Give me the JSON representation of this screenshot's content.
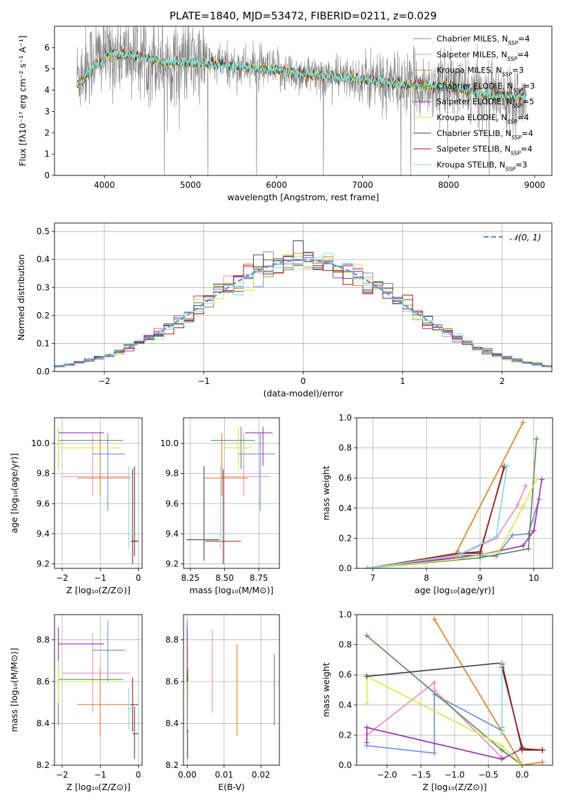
{
  "colors": {
    "chab_miles": "#6b8fd6",
    "salp_miles": "#e98fc1",
    "krou_miles": "#e0802a",
    "chab_elodie": "#5b8a5b",
    "salp_elodie": "#9b30b0",
    "krou_elodie": "#d6e84a",
    "chab_stelib": "#444444",
    "salp_stelib": "#9e1a1a",
    "krou_stelib": "#7fdcdc",
    "spectrum": "#808080",
    "normal": "#5b8fd6"
  },
  "chart_data": [
    {
      "type": "line",
      "title": "PLATE=1840, MJD=53472, FIBERID=0211, z=0.029",
      "xlabel": "wavelength [Angstrom, rest frame]",
      "ylabel": "Flux [fλ10⁻¹⁷ erg cm⁻² s⁻¹ A⁻¹]",
      "xlim": [
        3420,
        9200
      ],
      "ylim": [
        0,
        7
      ],
      "xticks": [
        "4000",
        "5000",
        "6000",
        "7000",
        "8000",
        "9000"
      ],
      "yticks": [
        "0",
        "1",
        "2",
        "3",
        "4",
        "5",
        "6"
      ],
      "legend": "top-right",
      "legend_entries": [
        {
          "label": "Chabrier MILES, N",
          "sub": "SSP",
          "suffix": "=4",
          "color": "chab_miles"
        },
        {
          "label": "Salpeter MILES, N",
          "sub": "SSP",
          "suffix": "=4",
          "color": "salp_miles"
        },
        {
          "label": "Kroupa MILES, N",
          "sub": "SSP",
          "suffix": "=3",
          "color": "krou_miles"
        },
        {
          "label": "Chabrier ELODIE, N",
          "sub": "SSP",
          "suffix": "=3",
          "color": "chab_elodie"
        },
        {
          "label": "Salpeter ELODIE, N",
          "sub": "SSP",
          "suffix": "=5",
          "color": "salp_elodie"
        },
        {
          "label": "Kroupa ELODIE, N",
          "sub": "SSP",
          "suffix": "=4",
          "color": "krou_elodie"
        },
        {
          "label": "Chabrier STELIB, N",
          "sub": "SSP",
          "suffix": "=4",
          "color": "chab_stelib"
        },
        {
          "label": "Salpeter STELIB, N",
          "sub": "SSP",
          "suffix": "=4",
          "color": "salp_stelib"
        },
        {
          "label": "Kroupa STELIB, N",
          "sub": "SSP",
          "suffix": "=3",
          "color": "krou_stelib"
        }
      ],
      "continuum": {
        "x": [
          3700,
          3900,
          4100,
          4400,
          4700,
          5000,
          5300,
          5600,
          6000,
          6400,
          6800,
          7200,
          7600,
          8000,
          8400,
          8800
        ],
        "y": [
          4.7,
          5.6,
          5.7,
          5.6,
          5.3,
          5.3,
          5.2,
          5.1,
          4.9,
          4.7,
          4.6,
          4.4,
          4.2,
          4.2,
          3.8,
          3.7
        ]
      }
    },
    {
      "type": "histogram",
      "xlabel": "(data-model)/error",
      "ylabel": "Normed distribution",
      "xlim": [
        -2.5,
        2.5
      ],
      "ylim": [
        0,
        0.53
      ],
      "xticks": [
        "−2",
        "−1",
        "0",
        "1",
        "2"
      ],
      "yticks": [
        "0.0",
        "0.1",
        "0.2",
        "0.3",
        "0.4",
        "0.5"
      ],
      "legend": "top-right",
      "legend_label": "𝒩(0, 1)",
      "bin_width": 0.1
    },
    {
      "type": "scatter",
      "xlabel": "Z [log₁₀(Z/Z⊙)]",
      "ylabel": "age  [log₁₀(age/yr)]",
      "xlim": [
        -2.2,
        0.1
      ],
      "ylim": [
        9.17,
        10.17
      ],
      "xticks": [
        "−2",
        "−1",
        "0"
      ],
      "yticks": [
        "9.2",
        "9.4",
        "9.6",
        "9.8",
        "10.0"
      ],
      "points": [
        {
          "x": -0.8,
          "xl": -1.2,
          "xr": -0.35,
          "y": 9.93,
          "yl": 9.55,
          "yh": 10.07,
          "c": "chab_miles"
        },
        {
          "x": -1.2,
          "xl": -2.0,
          "xr": -0.2,
          "y": 9.78,
          "yl": 9.65,
          "yh": 10.07,
          "c": "salp_miles"
        },
        {
          "x": -1.0,
          "xl": -1.6,
          "xr": -0.2,
          "y": 9.77,
          "yl": 9.65,
          "yh": 10.07,
          "c": "krou_miles"
        },
        {
          "x": -2.1,
          "xl": -2.1,
          "xr": -0.4,
          "y": 10.02,
          "yl": 9.83,
          "yh": 10.09,
          "c": "chab_elodie"
        },
        {
          "x": -2.1,
          "xl": -2.1,
          "xr": -0.9,
          "y": 10.07,
          "yl": 9.85,
          "yh": 10.11,
          "c": "salp_elodie"
        },
        {
          "x": -2.1,
          "xl": -2.1,
          "xr": -0.5,
          "y": 9.97,
          "yl": 9.82,
          "yh": 10.11,
          "c": "krou_elodie"
        },
        {
          "x": -0.1,
          "xl": -0.15,
          "xr": 0.0,
          "y": 9.35,
          "yl": 9.25,
          "yh": 9.85,
          "c": "chab_stelib"
        },
        {
          "x": -0.15,
          "xl": -0.2,
          "xr": 0.0,
          "y": 9.35,
          "yl": 9.2,
          "yh": 9.83,
          "c": "salp_stelib"
        },
        {
          "x": -0.25,
          "xl": -0.3,
          "xr": -0.1,
          "y": 9.4,
          "yl": 9.3,
          "yh": 9.85,
          "c": "krou_stelib"
        }
      ]
    },
    {
      "type": "scatter",
      "xlabel": "mass [log₁₀(M/M⊙)]",
      "xlim": [
        8.2,
        8.9
      ],
      "ylim": [
        9.17,
        10.17
      ],
      "xticks": [
        "8.25",
        "8.50",
        "8.75"
      ],
      "yticks": [
        "9.2",
        "9.4",
        "9.6",
        "9.8",
        "10.0"
      ],
      "points": [
        {
          "x": 8.76,
          "xl": 8.6,
          "xr": 8.87,
          "y": 9.93,
          "yl": 9.55,
          "yh": 10.07,
          "c": "chab_miles"
        },
        {
          "x": 8.64,
          "xl": 8.48,
          "xr": 8.83,
          "y": 9.78,
          "yl": 9.65,
          "yh": 10.07,
          "c": "salp_miles"
        },
        {
          "x": 8.48,
          "xl": 8.35,
          "xr": 8.67,
          "y": 9.77,
          "yl": 9.65,
          "yh": 10.07,
          "c": "krou_miles"
        },
        {
          "x": 8.62,
          "xl": 8.4,
          "xr": 8.72,
          "y": 10.02,
          "yl": 9.83,
          "yh": 10.11,
          "c": "chab_elodie"
        },
        {
          "x": 8.78,
          "xl": 8.65,
          "xr": 8.85,
          "y": 10.07,
          "yl": 9.85,
          "yh": 10.11,
          "c": "salp_elodie"
        },
        {
          "x": 8.6,
          "xl": 8.5,
          "xr": 8.7,
          "y": 9.97,
          "yl": 9.82,
          "yh": 10.11,
          "c": "krou_elodie"
        },
        {
          "x": 8.35,
          "xl": 8.22,
          "xr": 8.46,
          "y": 9.36,
          "yl": 9.22,
          "yh": 9.85,
          "c": "chab_stelib"
        },
        {
          "x": 8.49,
          "xl": 8.36,
          "xr": 8.62,
          "y": 9.35,
          "yl": 9.2,
          "yh": 9.83,
          "c": "salp_stelib"
        },
        {
          "x": 8.47,
          "xl": 8.37,
          "xr": 8.57,
          "y": 9.4,
          "yl": 9.3,
          "yh": 9.85,
          "c": "krou_stelib"
        }
      ]
    },
    {
      "type": "line",
      "xlabel": "age  [log₁₀(age/yr)]",
      "ylabel": "mass weight",
      "xlim": [
        6.7,
        10.35
      ],
      "ylim": [
        0,
        1.0
      ],
      "xticks": [
        "7",
        "8",
        "9",
        "10"
      ],
      "yticks": [
        "0.0",
        "0.2",
        "0.4",
        "0.6",
        "0.8",
        "1.0"
      ],
      "series": [
        {
          "c": "chab_miles",
          "x": [
            6.9,
            8.55,
            9.3,
            9.6,
            9.9,
            10.1
          ],
          "y": [
            0.0,
            0.09,
            0.08,
            0.22,
            0.23,
            0.46
          ]
        },
        {
          "c": "salp_miles",
          "x": [
            6.9,
            8.55,
            9.3,
            9.7,
            9.85
          ],
          "y": [
            0.0,
            0.08,
            0.2,
            0.42,
            0.55
          ]
        },
        {
          "c": "krou_miles",
          "x": [
            6.9,
            8.55,
            9.8
          ],
          "y": [
            0.0,
            0.1,
            0.97
          ]
        },
        {
          "c": "chab_elodie",
          "x": [
            6.9,
            9.0,
            9.9,
            10.05
          ],
          "y": [
            0.0,
            0.07,
            0.13,
            0.86
          ]
        },
        {
          "c": "salp_elodie",
          "x": [
            6.9,
            9.0,
            9.8,
            10.0,
            10.15
          ],
          "y": [
            0.0,
            0.09,
            0.15,
            0.25,
            0.59
          ]
        },
        {
          "c": "krou_elodie",
          "x": [
            6.9,
            8.55,
            9.35,
            9.8,
            10.05
          ],
          "y": [
            0.0,
            0.06,
            0.11,
            0.41,
            0.59
          ]
        },
        {
          "c": "chab_stelib",
          "x": [
            6.9,
            8.6,
            9.0,
            9.45
          ],
          "y": [
            0.0,
            0.1,
            0.1,
            0.68
          ]
        },
        {
          "c": "salp_stelib",
          "x": [
            6.9,
            8.6,
            9.0,
            9.45
          ],
          "y": [
            0.0,
            0.1,
            0.11,
            0.67
          ]
        },
        {
          "c": "krou_stelib",
          "x": [
            6.9,
            8.6,
            9.3,
            9.5
          ],
          "y": [
            0.0,
            0.09,
            0.21,
            0.68
          ]
        }
      ]
    },
    {
      "type": "scatter",
      "xlabel": "Z [log₁₀(Z/Z⊙)]",
      "ylabel": "mass [log₁₀(M/M⊙)]",
      "xlim": [
        -2.2,
        0.1
      ],
      "ylim": [
        8.2,
        8.92
      ],
      "xticks": [
        "−2",
        "−1",
        "0"
      ],
      "yticks": [
        "8.2",
        "8.4",
        "8.6",
        "8.8"
      ],
      "points": [
        {
          "x": -0.8,
          "xl": -1.2,
          "xr": -0.35,
          "y": 8.75,
          "yl": 8.6,
          "yh": 8.89,
          "c": "chab_miles"
        },
        {
          "x": -1.2,
          "xl": -2.0,
          "xr": -0.2,
          "y": 8.64,
          "yl": 8.45,
          "yh": 8.83,
          "c": "salp_miles"
        },
        {
          "x": -1.0,
          "xl": -1.6,
          "xr": -0.2,
          "y": 8.49,
          "yl": 8.34,
          "yh": 8.67,
          "c": "krou_miles"
        },
        {
          "x": -2.1,
          "xl": -2.1,
          "xr": -0.4,
          "y": 8.61,
          "yl": 8.39,
          "yh": 8.78,
          "c": "chab_elodie"
        },
        {
          "x": -2.1,
          "xl": -2.1,
          "xr": -0.9,
          "y": 8.78,
          "yl": 8.6,
          "yh": 8.86,
          "c": "salp_elodie"
        },
        {
          "x": -2.1,
          "xl": -2.1,
          "xr": -0.5,
          "y": 8.6,
          "yl": 8.5,
          "yh": 8.7,
          "c": "krou_elodie"
        },
        {
          "x": -0.1,
          "xl": -0.15,
          "xr": 0.0,
          "y": 8.35,
          "yl": 8.23,
          "yh": 8.48,
          "c": "chab_stelib"
        },
        {
          "x": -0.15,
          "xl": -0.2,
          "xr": 0.0,
          "y": 8.49,
          "yl": 8.36,
          "yh": 8.62,
          "c": "salp_stelib"
        },
        {
          "x": -0.25,
          "xl": -0.3,
          "xr": -0.1,
          "y": 8.47,
          "yl": 8.37,
          "yh": 8.57,
          "c": "krou_stelib"
        }
      ]
    },
    {
      "type": "scatter",
      "xlabel": "E(B-V)",
      "xlim": [
        -0.001,
        0.025
      ],
      "ylim": [
        8.2,
        8.92
      ],
      "xticks": [
        "0.00",
        "0.01",
        "0.02"
      ],
      "yticks": [
        "8.2",
        "8.4",
        "8.6",
        "8.8"
      ],
      "points": [
        {
          "x": 0.0,
          "y": 8.75,
          "yl": 8.6,
          "yh": 8.89,
          "c": "chab_miles"
        },
        {
          "x": 0.0068,
          "y": 8.64,
          "yl": 8.45,
          "yh": 8.85,
          "c": "salp_miles"
        },
        {
          "x": 0.0135,
          "y": 8.49,
          "yl": 8.34,
          "yh": 8.78,
          "c": "krou_miles"
        },
        {
          "x": 0.0236,
          "y": 8.61,
          "yl": 8.39,
          "yh": 8.73,
          "c": "chab_elodie"
        },
        {
          "x": 0.0,
          "y": 8.78,
          "yl": 8.6,
          "yh": 8.86,
          "c": "salp_elodie"
        },
        {
          "x": 0.0002,
          "y": 8.6,
          "yl": 8.5,
          "yh": 8.78,
          "c": "krou_elodie"
        },
        {
          "x": 0.0001,
          "y": 8.35,
          "yl": 8.23,
          "yh": 8.66,
          "c": "chab_stelib"
        },
        {
          "x": 0.0,
          "y": 8.49,
          "yl": 8.36,
          "yh": 8.62,
          "c": "salp_stelib"
        },
        {
          "x": 0.0001,
          "y": 8.47,
          "yl": 8.37,
          "yh": 8.6,
          "c": "krou_stelib"
        }
      ]
    },
    {
      "type": "line",
      "xlabel": "Z [log₁₀(Z/Z⊙)]",
      "ylabel": "mass weight",
      "xlim": [
        -2.45,
        0.45
      ],
      "ylim": [
        0,
        1.0
      ],
      "xticks": [
        "−2.0",
        "−1.5",
        "−1.0",
        "−0.5",
        "0.0"
      ],
      "yticks": [
        "0.0",
        "0.2",
        "0.4",
        "0.6",
        "0.8",
        "1.0"
      ],
      "series": [
        {
          "c": "chab_miles",
          "x": [
            -2.3,
            -1.3,
            -1.3,
            -0.3,
            -0.3
          ],
          "y": [
            0.13,
            0.08,
            0.47,
            0.23,
            0.25
          ]
        },
        {
          "c": "salp_miles",
          "x": [
            -2.3,
            -1.3,
            -1.3,
            -0.3
          ],
          "y": [
            0.2,
            0.55,
            0.5,
            0.05
          ]
        },
        {
          "c": "krou_miles",
          "x": [
            -1.3,
            0.0,
            0.3
          ],
          "y": [
            0.97,
            0.0,
            0.02
          ]
        },
        {
          "c": "chab_elodie",
          "x": [
            -2.3,
            -0.3,
            0.0
          ],
          "y": [
            0.86,
            0.1,
            0.0
          ]
        },
        {
          "c": "salp_elodie",
          "x": [
            -2.3,
            -2.3,
            -0.3,
            0.0,
            0.3
          ],
          "y": [
            0.15,
            0.25,
            0.04,
            0.11,
            0.1
          ]
        },
        {
          "c": "krou_elodie",
          "x": [
            -2.3,
            -2.3,
            -0.3,
            0.0
          ],
          "y": [
            0.41,
            0.59,
            0.13,
            0.0
          ]
        },
        {
          "c": "chab_stelib",
          "x": [
            -2.3,
            -0.3,
            -0.3,
            0.0,
            0.3
          ],
          "y": [
            0.59,
            0.68,
            0.68,
            0.1,
            0.1
          ]
        },
        {
          "c": "salp_stelib",
          "x": [
            -0.3,
            -0.3,
            0.0,
            0.0,
            0.3
          ],
          "y": [
            0.67,
            0.65,
            0.12,
            0.11,
            0.1
          ]
        },
        {
          "c": "krou_stelib",
          "x": [
            -0.3,
            -0.3
          ],
          "y": [
            0.68,
            0.21
          ]
        }
      ]
    }
  ]
}
